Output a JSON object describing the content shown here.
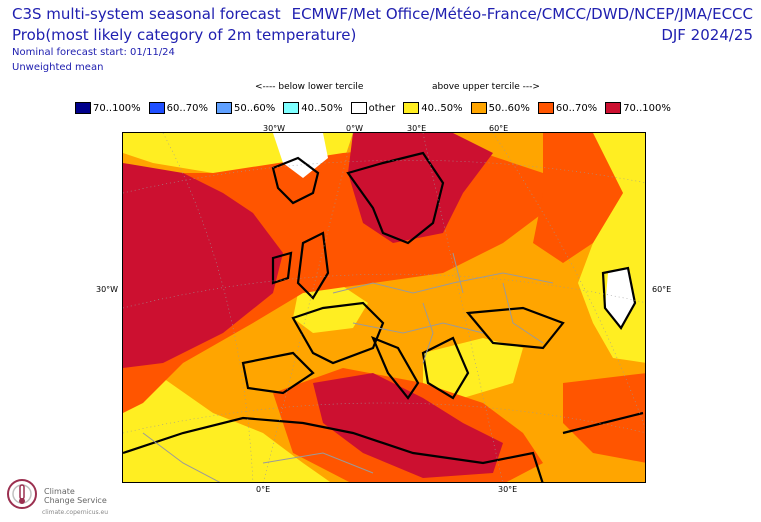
{
  "header": {
    "title_line1": "C3S multi-system seasonal forecast",
    "title_line2": "Prob(most likely category of 2m temperature)",
    "start_line": "Nominal forecast start: 01/11/24",
    "mean_line": "Unweighted mean",
    "providers": "ECMWF/Met Office/Météo-France/CMCC/DWD/NCEP/JMA/ECCC",
    "season": "DJF 2024/25"
  },
  "legend": {
    "below_label": "<---- below lower tercile",
    "above_label": "above upper tercile --->",
    "items": [
      {
        "label": "70..100%",
        "color": "#00008b"
      },
      {
        "label": "60..70%",
        "color": "#1f4fff"
      },
      {
        "label": "50..60%",
        "color": "#5fa0ff"
      },
      {
        "label": "40..50%",
        "color": "#7fffff"
      },
      {
        "label": "other",
        "color": "#ffffff"
      },
      {
        "label": "40..50%",
        "color": "#ffee22"
      },
      {
        "label": "50..60%",
        "color": "#ffa500"
      },
      {
        "label": "60..70%",
        "color": "#ff5500"
      },
      {
        "label": "70..100%",
        "color": "#cc1030"
      }
    ]
  },
  "map": {
    "ticks_top": [
      "30°W",
      "0°W",
      "30°E",
      "60°E"
    ],
    "ticks_bottom": [
      "0°E",
      "30°E"
    ],
    "tick_left": "30°W",
    "tick_right": "60°E"
  },
  "footer": {
    "logo_line1": "Climate",
    "logo_line2": "Change Service",
    "logo_url": "climate.copernicus.eu"
  }
}
